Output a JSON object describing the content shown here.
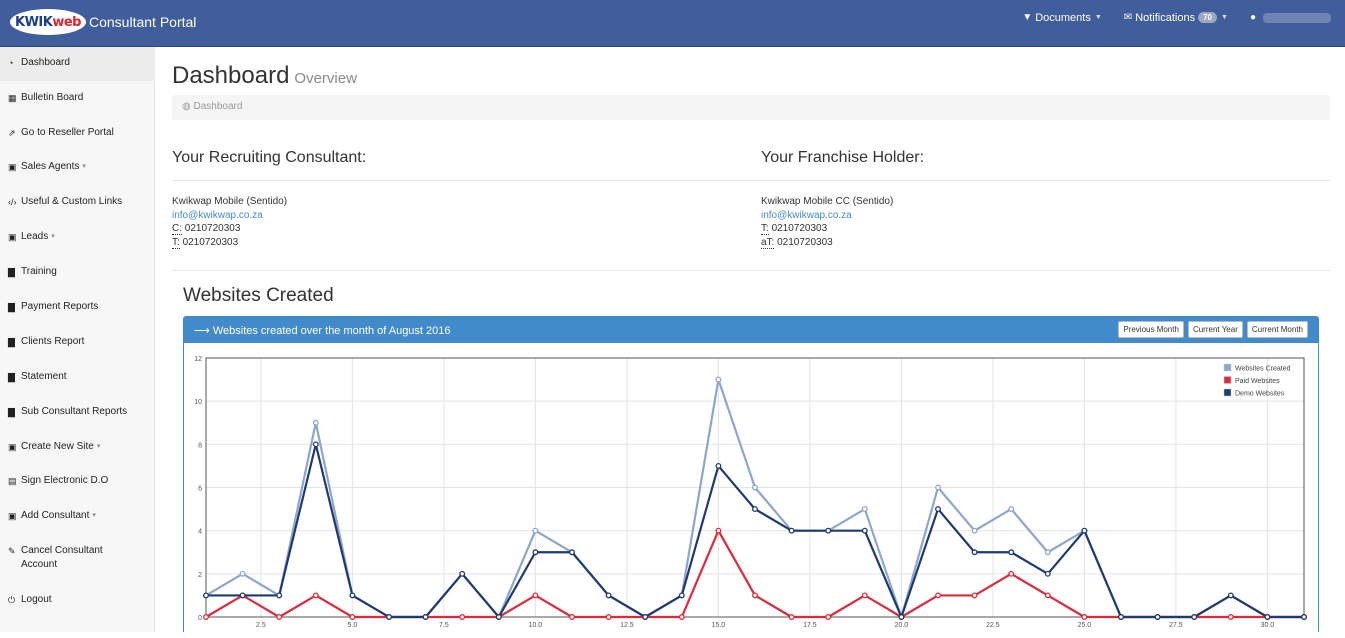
{
  "header": {
    "logo": {
      "part1": "KWIK",
      "part2": "web"
    },
    "brand": "Consultant Portal",
    "documents": "Documents",
    "notifications": "Notifications",
    "notifications_count": "70"
  },
  "sidebar": {
    "items": [
      {
        "label": "Dashboard",
        "icon": "dashboard-icon"
      },
      {
        "label": "Bulletin Board",
        "icon": "calendar-icon"
      },
      {
        "label": "Go to Reseller Portal",
        "icon": "external-link-icon"
      },
      {
        "label": "Sales Agents",
        "icon": "caret-square-icon",
        "caret": true
      },
      {
        "label": "Useful & Custom Links",
        "icon": "code-icon"
      },
      {
        "label": "Leads",
        "icon": "caret-square-icon",
        "caret": true
      },
      {
        "label": "Training",
        "icon": "bar-chart-icon"
      },
      {
        "label": "Payment Reports",
        "icon": "bar-chart-icon"
      },
      {
        "label": "Clients Report",
        "icon": "bar-chart-icon"
      },
      {
        "label": "Statement",
        "icon": "bar-chart-icon"
      },
      {
        "label": "Sub Consultant Reports",
        "icon": "bar-chart-icon"
      },
      {
        "label": "Create New Site",
        "icon": "caret-square-icon",
        "caret": true
      },
      {
        "label": "Sign Electronic D.O",
        "icon": "file-icon"
      },
      {
        "label": "Add Consultant",
        "icon": "caret-square-icon",
        "caret": true
      },
      {
        "label": "Cancel Consultant Account",
        "icon": "pencil-icon"
      },
      {
        "label": "Logout",
        "icon": "power-icon"
      }
    ]
  },
  "page": {
    "title": "Dashboard",
    "subtitle": "Overview",
    "breadcrumb": "Dashboard"
  },
  "recruiting": {
    "heading": "Your Recruiting Consultant:",
    "name": "Kwikwap Mobile (Sentido)",
    "email": "info@kwikwap.co.za",
    "line1_label": "C:",
    "line1_value": "0210720303",
    "line2_label": "T:",
    "line2_value": "0210720303"
  },
  "franchise": {
    "heading": "Your Franchise Holder:",
    "name": "Kwikwap Mobile CC (Sentido)",
    "email": "info@kwikwap.co.za",
    "line1_label": "T:",
    "line1_value": "0210720303",
    "line2_label": "aT:",
    "line2_value": "0210720303"
  },
  "websites": {
    "heading": "Websites Created",
    "panel_title": "Websites created over the month of August 2016",
    "buttons": [
      "Previous Month",
      "Current Year",
      "Current Month"
    ]
  },
  "chart_data": {
    "type": "line",
    "x": [
      1,
      2,
      3,
      4,
      5,
      6,
      7,
      8,
      9,
      10,
      11,
      12,
      13,
      14,
      15,
      16,
      17,
      18,
      19,
      20,
      21,
      22,
      23,
      24,
      25,
      26,
      27,
      28,
      29,
      30,
      31
    ],
    "xlim": [
      1,
      31
    ],
    "ylim": [
      0,
      12
    ],
    "xticks": [
      "2.5",
      "5.0",
      "7.5",
      "10.0",
      "12.5",
      "15.0",
      "17.5",
      "20.0",
      "22.5",
      "25.0",
      "27.5",
      "30.0"
    ],
    "yticks": [
      "0",
      "2",
      "4",
      "6",
      "8",
      "10",
      "12"
    ],
    "grid": true,
    "legend_position": "top-right",
    "series": [
      {
        "name": "Websites Created",
        "color": "#8ea6c9",
        "values": [
          1,
          2,
          1,
          9,
          1,
          0,
          0,
          2,
          0,
          4,
          3,
          1,
          0,
          1,
          11,
          6,
          4,
          4,
          5,
          0,
          6,
          4,
          5,
          3,
          4,
          0,
          0,
          0,
          1,
          0,
          0
        ]
      },
      {
        "name": "Paid Websites",
        "color": "#dc2a3d",
        "values": [
          0,
          1,
          0,
          1,
          0,
          0,
          0,
          0,
          0,
          1,
          0,
          0,
          0,
          0,
          4,
          1,
          0,
          0,
          1,
          0,
          1,
          1,
          2,
          1,
          0,
          0,
          0,
          0,
          0,
          0,
          0
        ]
      },
      {
        "name": "Demo Websites",
        "color": "#1f3a6e",
        "values": [
          1,
          1,
          1,
          8,
          1,
          0,
          0,
          2,
          0,
          3,
          3,
          1,
          0,
          1,
          7,
          5,
          4,
          4,
          4,
          0,
          5,
          3,
          3,
          2,
          4,
          0,
          0,
          0,
          1,
          0,
          0
        ]
      }
    ]
  }
}
